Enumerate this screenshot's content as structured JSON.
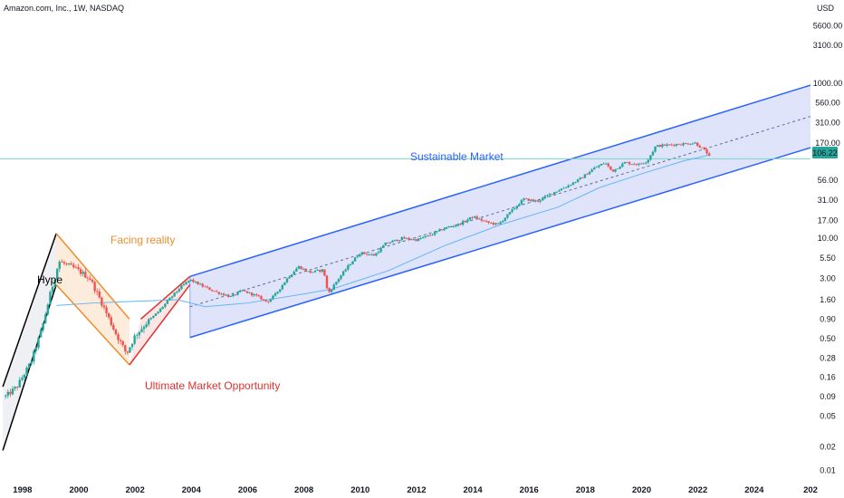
{
  "symbol_title": "Amazon.com, Inc., 1W, NASDAQ",
  "currency": "USD",
  "price_label": "106.22",
  "colors": {
    "up_candle": "#26a69a",
    "down_candle": "#ef5350",
    "channel_blue": "#2962ff",
    "channel_fill": "#c5cef8",
    "ma_line": "#64b5f6",
    "price_line": "#7cd3c9",
    "hype_line": "#000000",
    "reality_line": "#f08c2c",
    "opportunity_line": "#e0312f"
  },
  "annotations": {
    "hype": "Hype",
    "facing_reality": "Facing reality",
    "opportunity": "Ultimate Market Opportunity",
    "sustainable": "Sustainable Market"
  },
  "chart_data": {
    "type": "candlestick",
    "title": "Amazon.com, Inc., 1W, NASDAQ",
    "y_scale": "log",
    "ylim": [
      0.0075,
      12000
    ],
    "xlim": [
      1997.2,
      2026
    ],
    "y_ticks": [
      "5600.00",
      "3100.00",
      "1000.00",
      "560.00",
      "310.00",
      "170.00",
      "56.00",
      "31.00",
      "17.00",
      "10.00",
      "5.50",
      "3.00",
      "1.60",
      "0.90",
      "0.50",
      "0.28",
      "0.16",
      "0.09",
      "0.05",
      "0.02",
      "0.01"
    ],
    "x_ticks": [
      "1998",
      "2000",
      "2002",
      "2004",
      "2006",
      "2008",
      "2010",
      "2012",
      "2014",
      "2016",
      "2018",
      "2020",
      "2022",
      "2024",
      "202"
    ],
    "last_price": 106.22,
    "price_path": [
      [
        1997.4,
        0.09
      ],
      [
        1997.8,
        0.12
      ],
      [
        1998.3,
        0.25
      ],
      [
        1998.7,
        0.7
      ],
      [
        1999.0,
        2.0
      ],
      [
        1999.3,
        5.0
      ],
      [
        1999.9,
        4.0
      ],
      [
        2000.4,
        3.0
      ],
      [
        2000.8,
        1.5
      ],
      [
        2001.3,
        0.6
      ],
      [
        2001.7,
        0.32
      ],
      [
        2002.0,
        0.55
      ],
      [
        2002.4,
        0.8
      ],
      [
        2002.8,
        1.1
      ],
      [
        2003.2,
        1.6
      ],
      [
        2003.6,
        2.3
      ],
      [
        2003.95,
        2.9
      ],
      [
        2004.4,
        2.4
      ],
      [
        2004.9,
        2.0
      ],
      [
        2005.4,
        1.75
      ],
      [
        2005.8,
        2.1
      ],
      [
        2006.3,
        1.8
      ],
      [
        2006.7,
        1.5
      ],
      [
        2007.0,
        1.9
      ],
      [
        2007.4,
        3.0
      ],
      [
        2007.8,
        4.3
      ],
      [
        2008.2,
        3.6
      ],
      [
        2008.7,
        3.9
      ],
      [
        2008.85,
        1.9
      ],
      [
        2009.2,
        2.9
      ],
      [
        2009.6,
        4.5
      ],
      [
        2010.0,
        6.5
      ],
      [
        2010.5,
        6.0
      ],
      [
        2010.9,
        8.5
      ],
      [
        2011.5,
        10.0
      ],
      [
        2012.0,
        9.5
      ],
      [
        2012.5,
        11.0
      ],
      [
        2013.0,
        13.5
      ],
      [
        2013.5,
        15.0
      ],
      [
        2014.0,
        19.0
      ],
      [
        2014.5,
        16.0
      ],
      [
        2014.9,
        15.0
      ],
      [
        2015.3,
        21.0
      ],
      [
        2015.8,
        32.0
      ],
      [
        2016.3,
        30.0
      ],
      [
        2016.8,
        38.0
      ],
      [
        2017.3,
        46.0
      ],
      [
        2017.8,
        58.0
      ],
      [
        2018.3,
        80.0
      ],
      [
        2018.7,
        95.0
      ],
      [
        2018.95,
        73.0
      ],
      [
        2019.4,
        95.0
      ],
      [
        2019.9,
        90.0
      ],
      [
        2020.2,
        100.0
      ],
      [
        2020.5,
        155.0
      ],
      [
        2020.9,
        160.0
      ],
      [
        2021.4,
        165.0
      ],
      [
        2021.9,
        170.0
      ],
      [
        2022.1,
        150.0
      ],
      [
        2022.3,
        130.0
      ],
      [
        2022.45,
        106.22
      ]
    ],
    "moving_average": [
      [
        1999.2,
        1.35
      ],
      [
        2000.5,
        1.45
      ],
      [
        2001.5,
        1.5
      ],
      [
        2002.5,
        1.55
      ],
      [
        2003.5,
        1.6
      ],
      [
        2004.5,
        1.3
      ],
      [
        2006.0,
        1.45
      ],
      [
        2008.0,
        1.9
      ],
      [
        2009.0,
        2.2
      ],
      [
        2011.0,
        3.8
      ],
      [
        2013.0,
        8.0
      ],
      [
        2015.0,
        15.0
      ],
      [
        2017.0,
        25.0
      ],
      [
        2018.5,
        45.0
      ],
      [
        2020.0,
        68.0
      ],
      [
        2021.5,
        100.0
      ],
      [
        2022.45,
        120.0
      ]
    ],
    "channels": [
      {
        "name": "hype_upper",
        "from": [
          1997.3,
          0.12
        ],
        "to": [
          1999.2,
          11.5
        ]
      },
      {
        "name": "hype_lower",
        "from": [
          1997.3,
          0.018
        ],
        "to": [
          1999.2,
          2.5
        ]
      },
      {
        "name": "reality_upper",
        "from": [
          1999.2,
          11.5
        ],
        "to": [
          2001.8,
          0.9
        ]
      },
      {
        "name": "reality_lower",
        "from": [
          1999.2,
          2.5
        ],
        "to": [
          2001.8,
          0.23
        ]
      },
      {
        "name": "opportunity_lower",
        "from": [
          2001.8,
          0.23
        ],
        "to": [
          2003.95,
          2.5
        ]
      },
      {
        "name": "opportunity_upper",
        "from": [
          2002.2,
          0.9
        ],
        "to": [
          2003.95,
          3.2
        ]
      },
      {
        "name": "sustainable_upper",
        "from": [
          2003.95,
          3.2
        ],
        "to": [
          2026,
          950
        ]
      },
      {
        "name": "sustainable_lower",
        "from": [
          2003.95,
          0.52
        ],
        "to": [
          2026,
          148
        ]
      },
      {
        "name": "sustainable_mid",
        "from": [
          2003.95,
          1.3
        ],
        "to": [
          2026,
          375
        ]
      }
    ]
  }
}
